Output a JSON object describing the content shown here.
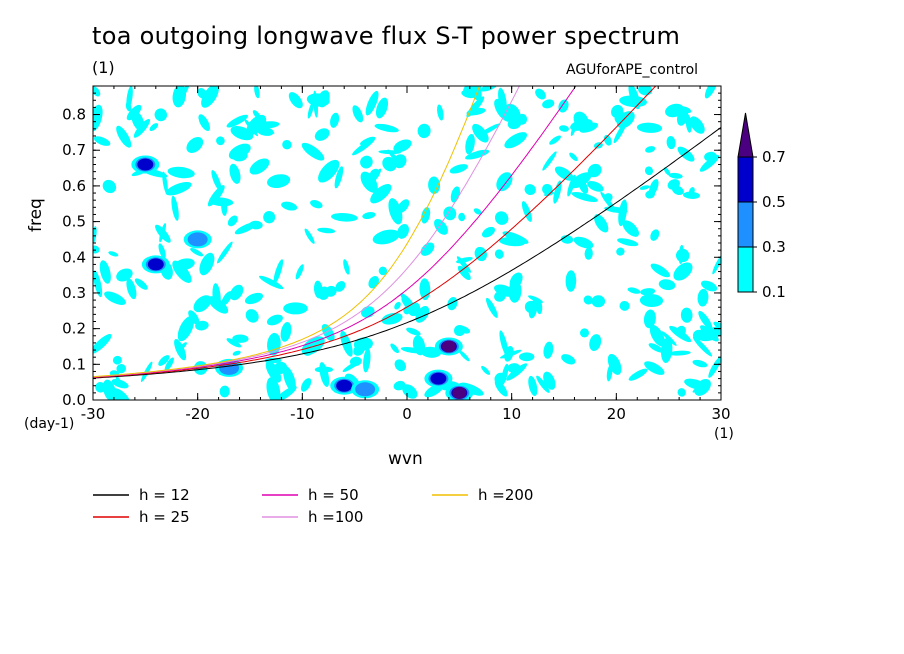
{
  "title": "toa outgoing longwave flux S-T power spectrum",
  "units_label": "(1)",
  "run_label": "AGUforAPE_control",
  "chart_data": {
    "type": "heatmap",
    "xlabel": "wvn",
    "ylabel": "freq",
    "x_unit": "(1)",
    "y_unit": "(day-1)",
    "xlim": [
      -30,
      30
    ],
    "ylim": [
      0,
      0.88
    ],
    "xticks": [
      "-30",
      "-20",
      "-10",
      "0",
      "10",
      "20",
      "30"
    ],
    "xtick_values": [
      -30,
      -20,
      -10,
      0,
      10,
      20,
      30
    ],
    "yticks": [
      "0.0",
      "0.1",
      "0.2",
      "0.3",
      "0.4",
      "0.5",
      "0.6",
      "0.7",
      "0.8"
    ],
    "ytick_values": [
      0,
      0.1,
      0.2,
      0.3,
      0.4,
      0.5,
      0.6,
      0.7,
      0.8
    ],
    "colorbar": {
      "levels": [
        "0.1",
        "0.3",
        "0.5",
        "0.7"
      ],
      "colors": [
        "#00ffff",
        "#1e90ff",
        "#0000cd",
        "#4b0082"
      ]
    },
    "peaks": [
      {
        "x": 4,
        "y": 0.15,
        "level": 0.7
      },
      {
        "x": 5,
        "y": 0.02,
        "level": 0.7
      },
      {
        "x": 3,
        "y": 0.06,
        "level": 0.5
      },
      {
        "x": -6,
        "y": 0.04,
        "level": 0.5
      },
      {
        "x": -25,
        "y": 0.66,
        "level": 0.5
      },
      {
        "x": -24,
        "y": 0.38,
        "level": 0.5
      },
      {
        "x": -20,
        "y": 0.45,
        "level": 0.3
      },
      {
        "x": -17,
        "y": 0.09,
        "level": 0.3
      },
      {
        "x": -4,
        "y": 0.03,
        "level": 0.3
      }
    ],
    "series": [
      {
        "name": "h = 12",
        "color": "#000000",
        "h": 12
      },
      {
        "name": "h = 25",
        "color": "#e00000",
        "h": 25
      },
      {
        "name": "h = 50",
        "color": "#e000b0",
        "h": 50
      },
      {
        "name": "h =100",
        "color": "#e090e0",
        "h": 100
      },
      {
        "name": "h =200",
        "color": "#f0c000",
        "h": 200
      }
    ]
  }
}
